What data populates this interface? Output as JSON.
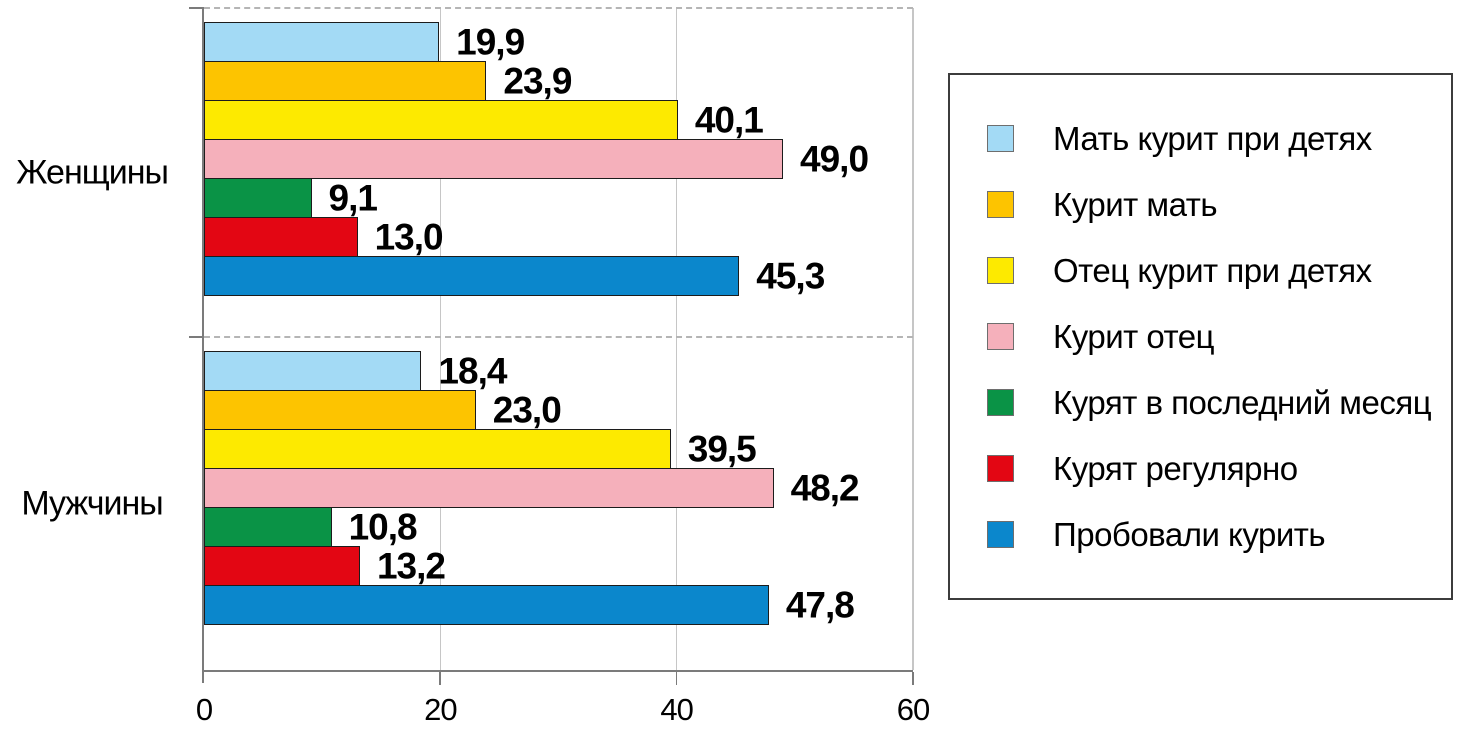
{
  "chart_data": {
    "type": "bar",
    "orientation": "horizontal",
    "categories": [
      {
        "key": "women",
        "label": "Женщины"
      },
      {
        "key": "men",
        "label": "Мужчины"
      }
    ],
    "series": [
      {
        "key": "mother-smokes-near-children",
        "label": "Мать курит при детях",
        "color": "#a3daf5",
        "values": [
          19.9,
          18.4
        ],
        "display_values": [
          "19,9",
          "18,4"
        ]
      },
      {
        "key": "mother-smokes",
        "label": "Курит мать",
        "color": "#fdc400",
        "values": [
          23.9,
          23.0
        ],
        "display_values": [
          "23,9",
          "23,0"
        ]
      },
      {
        "key": "father-smokes-near-children",
        "label": "Отец курит при детях",
        "color": "#fdea00",
        "values": [
          40.1,
          39.5
        ],
        "display_values": [
          "40,1",
          "39,5"
        ]
      },
      {
        "key": "father-smokes",
        "label": "Курит отец",
        "color": "#f5b0bb",
        "values": [
          49.0,
          48.2
        ],
        "display_values": [
          "49,0",
          "48,2"
        ]
      },
      {
        "key": "smoked-in-last-month",
        "label": "Курят в последний месяц",
        "color": "#0a9346",
        "values": [
          9.1,
          10.8
        ],
        "display_values": [
          "9,1",
          "10,8"
        ]
      },
      {
        "key": "smoke-regularly",
        "label": "Курят регулярно",
        "color": "#e30613",
        "values": [
          13.0,
          13.2
        ],
        "display_values": [
          "13,0",
          "13,2"
        ]
      },
      {
        "key": "tried-smoking",
        "label": "Пробовали курить",
        "color": "#0b87cc",
        "values": [
          45.3,
          47.8
        ],
        "display_values": [
          "45,3",
          "47,8"
        ]
      }
    ],
    "xaxis": {
      "min": 0,
      "max": 60,
      "ticks": [
        {
          "value": 0,
          "label": "0"
        },
        {
          "value": 20,
          "label": "20"
        },
        {
          "value": 40,
          "label": "40"
        },
        {
          "value": 60,
          "label": "60"
        }
      ]
    },
    "grid": {
      "vertical_lines_at": [
        20,
        40,
        60
      ]
    },
    "legend_position": "right",
    "value_label_decimal_separator": ",",
    "styles": {
      "background": "#ffffff",
      "gridline_color": "#c6c6c6",
      "axis_color": "#7b7b7b",
      "separator_color": "#b5b5b5",
      "bar_border_color": "#1c1c1c",
      "legend_border_color": "#3c3c3c",
      "text_color": "#000000"
    }
  }
}
